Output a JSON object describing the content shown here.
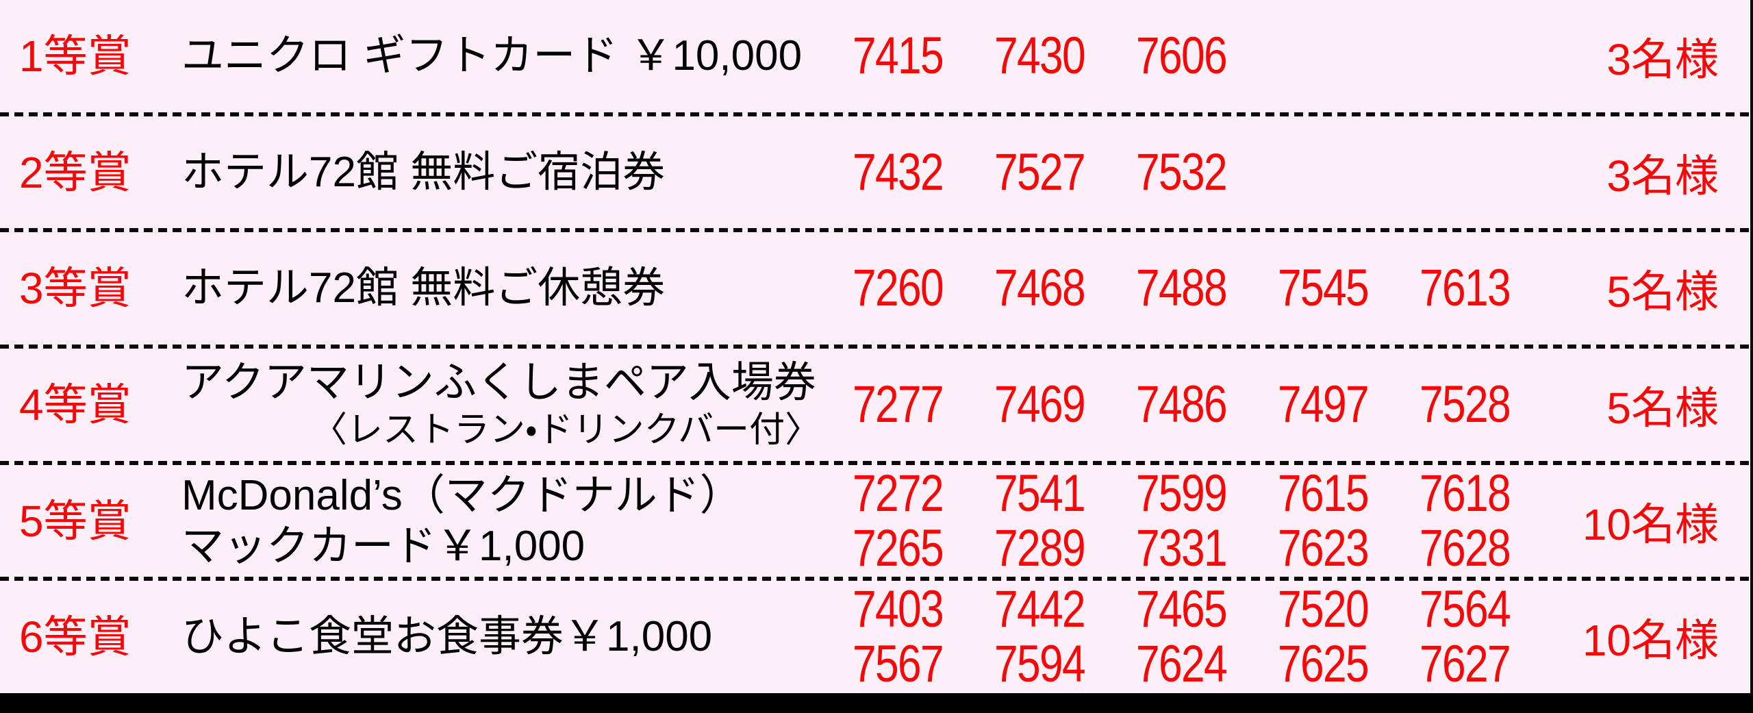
{
  "colors": {
    "background": "#fdeff7",
    "accent_red": "#f40808",
    "line_black": "#0a0a0a",
    "text_black": "#000000"
  },
  "table": {
    "rows": [
      {
        "rank": "1等賞",
        "prize_lines": [
          "ユニクロ ギフトカード ￥10,000"
        ],
        "number_lines": [
          [
            "7415",
            "7430",
            "7606"
          ]
        ],
        "winners": "3名様"
      },
      {
        "rank": "2等賞",
        "prize_lines": [
          "ホテル72館 無料ご宿泊券"
        ],
        "number_lines": [
          [
            "7432",
            "7527",
            "7532"
          ]
        ],
        "winners": "3名様"
      },
      {
        "rank": "3等賞",
        "prize_lines": [
          "ホテル72館 無料ご休憩券"
        ],
        "number_lines": [
          [
            "7260",
            "7468",
            "7488",
            "7545",
            "7613"
          ]
        ],
        "winners": "5名様"
      },
      {
        "rank": "4等賞",
        "prize_lines": [
          "アクアマリンふくしまペア入場券"
        ],
        "prize_note": "〈レストラン・ドリンクバー付〉",
        "number_lines": [
          [
            "7277",
            "7469",
            "7486",
            "7497",
            "7528"
          ]
        ],
        "winners": "5名様"
      },
      {
        "rank": "5等賞",
        "prize_lines": [
          "McDonald’s（マクドナルド）",
          "マックカード￥1,000"
        ],
        "number_lines": [
          [
            "7272",
            "7541",
            "7599",
            "7615",
            "7618"
          ],
          [
            "7265",
            "7289",
            "7331",
            "7623",
            "7628"
          ]
        ],
        "winners": "10名様"
      },
      {
        "rank": "6等賞",
        "prize_lines": [
          "ひよこ食堂お食事券￥1,000"
        ],
        "number_lines": [
          [
            "7403",
            "7442",
            "7465",
            "7520",
            "7564"
          ],
          [
            "7567",
            "7594",
            "7624",
            "7625",
            "7627"
          ]
        ],
        "winners": "10名様"
      }
    ]
  }
}
